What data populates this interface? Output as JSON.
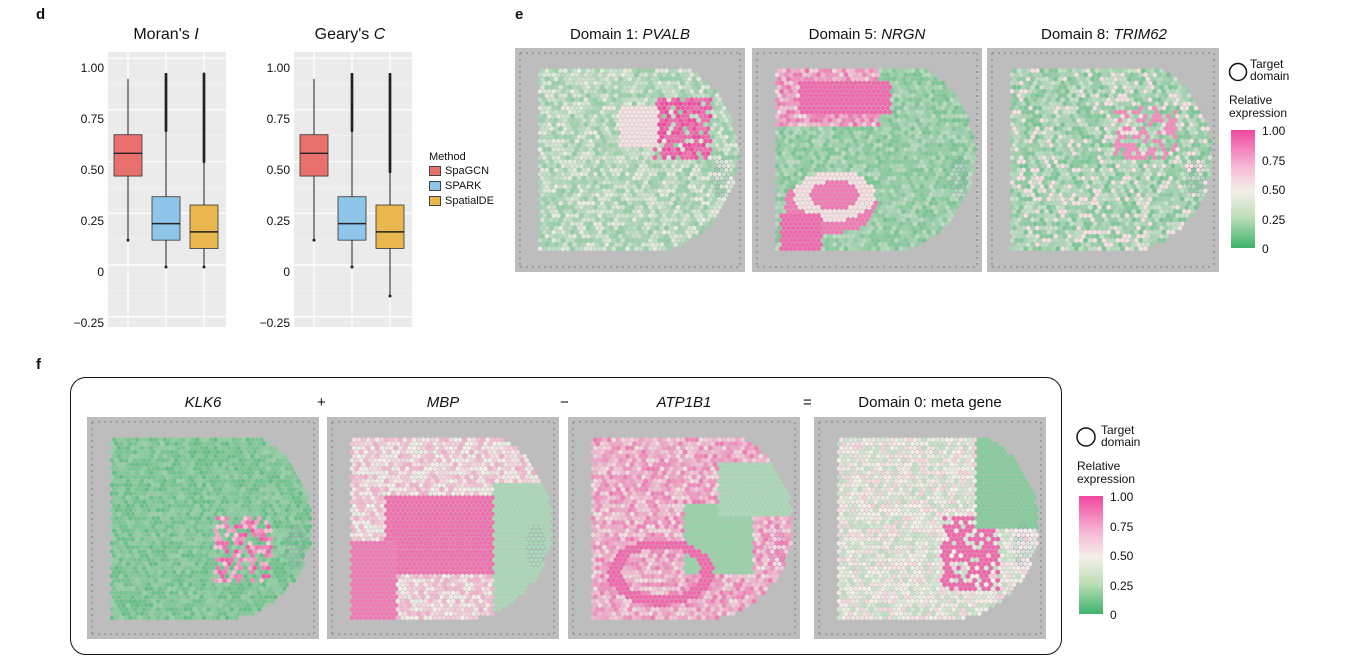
{
  "panel_d": {
    "letter": "d",
    "charts": [
      {
        "title_pre": "Moran's ",
        "title_it": "I"
      },
      {
        "title_pre": "Geary's ",
        "title_it": "C"
      }
    ],
    "yticks": [
      "1.00",
      "0.75",
      "0.50",
      "0.25",
      "0",
      "−0.25"
    ],
    "legend": {
      "title": "Method",
      "items": [
        {
          "label": "SpaGCN",
          "color": "#E8716D"
        },
        {
          "label": "SPARK",
          "color": "#8FC5E8"
        },
        {
          "label": "SpatialDE",
          "color": "#E8B84F"
        }
      ]
    }
  },
  "chart_data": [
    {
      "type": "box",
      "title": "Moran's I",
      "ylim": [
        -0.3,
        1.03
      ],
      "categories": [
        "SpaGCN",
        "SPARK",
        "SpatialDE"
      ],
      "boxes": [
        {
          "name": "SpaGCN",
          "min": 0.12,
          "q1": 0.43,
          "median": 0.54,
          "q3": 0.63,
          "max": 0.9
        },
        {
          "name": "SPARK",
          "min": -0.01,
          "q1": 0.12,
          "median": 0.2,
          "q3": 0.33,
          "max": 0.65
        },
        {
          "name": "SpatialDE",
          "min": -0.01,
          "q1": 0.08,
          "median": 0.16,
          "q3": 0.29,
          "max": 0.5
        }
      ],
      "grid": true
    },
    {
      "type": "box",
      "title": "Geary's C",
      "ylim": [
        -0.3,
        1.03
      ],
      "categories": [
        "SpaGCN",
        "SPARK",
        "SpatialDE"
      ],
      "boxes": [
        {
          "name": "SpaGCN",
          "min": 0.12,
          "q1": 0.43,
          "median": 0.54,
          "q3": 0.63,
          "max": 0.9
        },
        {
          "name": "SPARK",
          "min": -0.01,
          "q1": 0.12,
          "median": 0.2,
          "q3": 0.33,
          "max": 0.65
        },
        {
          "name": "SpatialDE",
          "min": -0.15,
          "q1": 0.08,
          "median": 0.16,
          "q3": 0.29,
          "max": 0.45
        }
      ],
      "grid": true
    }
  ],
  "panel_e": {
    "letter": "e",
    "maps": [
      {
        "title_pre": "Domain 1: ",
        "title_it": "PVALB"
      },
      {
        "title_pre": "Domain 5: ",
        "title_it": "NRGN"
      },
      {
        "title_pre": "Domain 8: ",
        "title_it": "TRIM62"
      }
    ]
  },
  "panel_f": {
    "letter": "f",
    "maps": [
      {
        "title_it": "KLK6",
        "title_pre": ""
      },
      {
        "title_it": "MBP",
        "title_pre": ""
      },
      {
        "title_it": "ATP1B1",
        "title_pre": ""
      },
      {
        "title_it": "",
        "title_pre": "Domain 0: meta gene"
      }
    ],
    "operators": [
      "+",
      "−",
      "="
    ]
  },
  "colorbar": {
    "target_label_1": "Target",
    "target_label_2": "domain",
    "rel_label_1": "Relative",
    "rel_label_2": "expression",
    "ticks": [
      "1.00",
      "0.75",
      "0.50",
      "0.25",
      "0"
    ],
    "colors": [
      "#F0479E",
      "#F4F0E8",
      "#3DB36A"
    ]
  }
}
